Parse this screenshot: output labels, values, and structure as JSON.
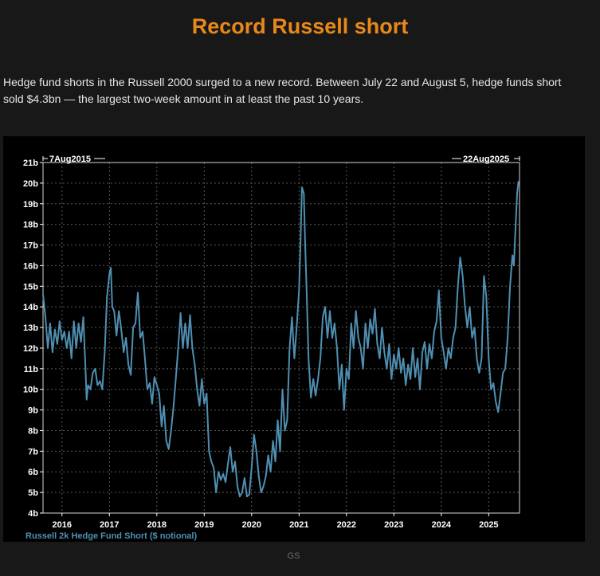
{
  "header": {
    "title": "Record Russell short",
    "description": "Hedge fund shorts in the Russell 2000 surged to a new record. Between July 22 and August 5, hedge funds short sold $4.3bn — the largest two-week amount in at least the past 10 years."
  },
  "footer": {
    "source": "GS"
  },
  "colors": {
    "title": "#e8881a",
    "background": "#181818",
    "chart_background": "#000000",
    "series": "#4f90b2",
    "grid": "#5a5a5a"
  },
  "chart_data": {
    "type": "line",
    "range_start_label": "7Aug2015",
    "range_end_label": "22Aug2025",
    "legend_label": "Russell 2k Hedge Fund Short ($ notional)",
    "y_unit_suffix": "b",
    "ylim": [
      4,
      21
    ],
    "xlim": [
      2015.6,
      2025.65
    ],
    "y_ticks": [
      4,
      5,
      6,
      7,
      8,
      9,
      10,
      11,
      12,
      13,
      14,
      15,
      16,
      17,
      18,
      19,
      20,
      21
    ],
    "y_tick_labels": [
      "4b",
      "5b",
      "6b",
      "7b",
      "8b",
      "9b",
      "10b",
      "11b",
      "12b",
      "13b",
      "14b",
      "15b",
      "16b",
      "17b",
      "18b",
      "19b",
      "20b",
      "21b"
    ],
    "x_ticks": [
      2016,
      2017,
      2018,
      2019,
      2020,
      2021,
      2022,
      2023,
      2024,
      2025
    ],
    "x_tick_labels": [
      "2016",
      "2017",
      "2018",
      "2019",
      "2020",
      "2021",
      "2022",
      "2023",
      "2024",
      "2025"
    ],
    "grid": true,
    "series": [
      {
        "name": "Russell 2k Hedge Fund Short ($ notional)",
        "points": [
          [
            2015.6,
            14.6
          ],
          [
            2015.65,
            13.5
          ],
          [
            2015.7,
            12.0
          ],
          [
            2015.75,
            13.2
          ],
          [
            2015.8,
            11.8
          ],
          [
            2015.85,
            12.9
          ],
          [
            2015.9,
            12.2
          ],
          [
            2015.95,
            13.3
          ],
          [
            2016.0,
            12.4
          ],
          [
            2016.05,
            12.8
          ],
          [
            2016.1,
            12.0
          ],
          [
            2016.15,
            12.8
          ],
          [
            2016.2,
            11.5
          ],
          [
            2016.25,
            13.3
          ],
          [
            2016.3,
            12.0
          ],
          [
            2016.35,
            13.2
          ],
          [
            2016.4,
            12.3
          ],
          [
            2016.45,
            13.5
          ],
          [
            2016.5,
            10.7
          ],
          [
            2016.52,
            9.5
          ],
          [
            2016.55,
            10.2
          ],
          [
            2016.6,
            10.0
          ],
          [
            2016.65,
            10.8
          ],
          [
            2016.7,
            11.0
          ],
          [
            2016.75,
            10.2
          ],
          [
            2016.8,
            10.4
          ],
          [
            2016.85,
            10.0
          ],
          [
            2016.9,
            11.8
          ],
          [
            2016.95,
            14.5
          ],
          [
            2017.0,
            15.6
          ],
          [
            2017.03,
            15.9
          ],
          [
            2017.06,
            14.0
          ],
          [
            2017.1,
            13.8
          ],
          [
            2017.15,
            12.6
          ],
          [
            2017.2,
            13.8
          ],
          [
            2017.25,
            12.9
          ],
          [
            2017.3,
            11.8
          ],
          [
            2017.35,
            12.5
          ],
          [
            2017.4,
            11.2
          ],
          [
            2017.45,
            10.7
          ],
          [
            2017.5,
            13.0
          ],
          [
            2017.55,
            13.2
          ],
          [
            2017.6,
            14.7
          ],
          [
            2017.65,
            12.5
          ],
          [
            2017.7,
            12.8
          ],
          [
            2017.75,
            11.5
          ],
          [
            2017.8,
            10.0
          ],
          [
            2017.85,
            10.3
          ],
          [
            2017.9,
            9.3
          ],
          [
            2017.95,
            10.6
          ],
          [
            2018.0,
            10.2
          ],
          [
            2018.05,
            9.8
          ],
          [
            2018.1,
            8.2
          ],
          [
            2018.15,
            9.2
          ],
          [
            2018.2,
            7.5
          ],
          [
            2018.25,
            7.1
          ],
          [
            2018.3,
            8.0
          ],
          [
            2018.35,
            9.1
          ],
          [
            2018.4,
            10.5
          ],
          [
            2018.45,
            12.0
          ],
          [
            2018.5,
            13.7
          ],
          [
            2018.55,
            12.0
          ],
          [
            2018.6,
            13.2
          ],
          [
            2018.65,
            12.0
          ],
          [
            2018.7,
            13.6
          ],
          [
            2018.75,
            12.0
          ],
          [
            2018.8,
            11.2
          ],
          [
            2018.85,
            10.0
          ],
          [
            2018.9,
            9.2
          ],
          [
            2018.95,
            10.5
          ],
          [
            2019.0,
            9.3
          ],
          [
            2019.05,
            9.8
          ],
          [
            2019.1,
            7.0
          ],
          [
            2019.15,
            6.5
          ],
          [
            2019.2,
            6.2
          ],
          [
            2019.25,
            5.0
          ],
          [
            2019.3,
            6.0
          ],
          [
            2019.35,
            5.6
          ],
          [
            2019.4,
            5.9
          ],
          [
            2019.45,
            5.5
          ],
          [
            2019.5,
            6.4
          ],
          [
            2019.55,
            7.2
          ],
          [
            2019.6,
            6.0
          ],
          [
            2019.65,
            6.5
          ],
          [
            2019.7,
            5.3
          ],
          [
            2019.75,
            4.8
          ],
          [
            2019.8,
            5.0
          ],
          [
            2019.85,
            5.7
          ],
          [
            2019.9,
            4.8
          ],
          [
            2019.95,
            4.9
          ],
          [
            2020.0,
            6.2
          ],
          [
            2020.05,
            7.8
          ],
          [
            2020.1,
            7.0
          ],
          [
            2020.15,
            5.8
          ],
          [
            2020.2,
            5.0
          ],
          [
            2020.25,
            5.3
          ],
          [
            2020.3,
            5.8
          ],
          [
            2020.35,
            6.8
          ],
          [
            2020.4,
            6.0
          ],
          [
            2020.45,
            7.5
          ],
          [
            2020.5,
            6.5
          ],
          [
            2020.55,
            8.5
          ],
          [
            2020.6,
            7.0
          ],
          [
            2020.65,
            10.0
          ],
          [
            2020.7,
            8.0
          ],
          [
            2020.75,
            8.5
          ],
          [
            2020.8,
            12.0
          ],
          [
            2020.85,
            13.5
          ],
          [
            2020.9,
            11.5
          ],
          [
            2020.95,
            13.0
          ],
          [
            2021.0,
            14.8
          ],
          [
            2021.03,
            17.0
          ],
          [
            2021.06,
            19.8
          ],
          [
            2021.1,
            19.5
          ],
          [
            2021.13,
            17.0
          ],
          [
            2021.16,
            14.8
          ],
          [
            2021.2,
            11.5
          ],
          [
            2021.25,
            9.6
          ],
          [
            2021.3,
            10.5
          ],
          [
            2021.35,
            9.7
          ],
          [
            2021.4,
            10.5
          ],
          [
            2021.45,
            11.5
          ],
          [
            2021.5,
            13.5
          ],
          [
            2021.55,
            14.0
          ],
          [
            2021.6,
            12.5
          ],
          [
            2021.65,
            13.8
          ],
          [
            2021.7,
            12.5
          ],
          [
            2021.75,
            13.2
          ],
          [
            2021.8,
            12.0
          ],
          [
            2021.85,
            10.0
          ],
          [
            2021.9,
            11.2
          ],
          [
            2021.95,
            9.0
          ],
          [
            2022.0,
            11.0
          ],
          [
            2022.05,
            10.5
          ],
          [
            2022.1,
            13.2
          ],
          [
            2022.15,
            12.0
          ],
          [
            2022.2,
            13.8
          ],
          [
            2022.25,
            12.5
          ],
          [
            2022.3,
            12.0
          ],
          [
            2022.35,
            11.0
          ],
          [
            2022.4,
            13.2
          ],
          [
            2022.45,
            12.0
          ],
          [
            2022.5,
            13.4
          ],
          [
            2022.55,
            12.7
          ],
          [
            2022.6,
            13.9
          ],
          [
            2022.65,
            12.2
          ],
          [
            2022.7,
            11.5
          ],
          [
            2022.75,
            13.0
          ],
          [
            2022.8,
            11.8
          ],
          [
            2022.85,
            11.0
          ],
          [
            2022.9,
            12.2
          ],
          [
            2022.95,
            10.5
          ],
          [
            2023.0,
            11.7
          ],
          [
            2023.05,
            11.0
          ],
          [
            2023.1,
            12.0
          ],
          [
            2023.15,
            10.8
          ],
          [
            2023.2,
            11.5
          ],
          [
            2023.25,
            10.2
          ],
          [
            2023.3,
            11.2
          ],
          [
            2023.35,
            10.5
          ],
          [
            2023.4,
            12.0
          ],
          [
            2023.45,
            10.6
          ],
          [
            2023.5,
            11.5
          ],
          [
            2023.55,
            10.0
          ],
          [
            2023.6,
            11.8
          ],
          [
            2023.65,
            12.3
          ],
          [
            2023.7,
            11.0
          ],
          [
            2023.75,
            12.2
          ],
          [
            2023.8,
            11.5
          ],
          [
            2023.85,
            12.8
          ],
          [
            2023.9,
            13.3
          ],
          [
            2023.95,
            14.8
          ],
          [
            2024.0,
            12.5
          ],
          [
            2024.05,
            11.8
          ],
          [
            2024.1,
            11.0
          ],
          [
            2024.15,
            12.0
          ],
          [
            2024.2,
            11.5
          ],
          [
            2024.25,
            12.5
          ],
          [
            2024.3,
            13.0
          ],
          [
            2024.35,
            15.0
          ],
          [
            2024.4,
            16.4
          ],
          [
            2024.45,
            15.5
          ],
          [
            2024.5,
            14.0
          ],
          [
            2024.55,
            13.0
          ],
          [
            2024.6,
            14.0
          ],
          [
            2024.65,
            12.5
          ],
          [
            2024.7,
            13.0
          ],
          [
            2024.75,
            11.5
          ],
          [
            2024.8,
            10.8
          ],
          [
            2024.85,
            11.5
          ],
          [
            2024.9,
            15.5
          ],
          [
            2024.95,
            14.5
          ],
          [
            2025.0,
            11.5
          ],
          [
            2025.05,
            10.0
          ],
          [
            2025.1,
            10.3
          ],
          [
            2025.15,
            9.4
          ],
          [
            2025.2,
            8.9
          ],
          [
            2025.25,
            9.8
          ],
          [
            2025.3,
            10.8
          ],
          [
            2025.35,
            11.0
          ],
          [
            2025.4,
            12.5
          ],
          [
            2025.45,
            15.0
          ],
          [
            2025.5,
            16.5
          ],
          [
            2025.53,
            16.0
          ],
          [
            2025.56,
            17.5
          ],
          [
            2025.6,
            19.5
          ],
          [
            2025.63,
            20.1
          ]
        ]
      }
    ]
  }
}
